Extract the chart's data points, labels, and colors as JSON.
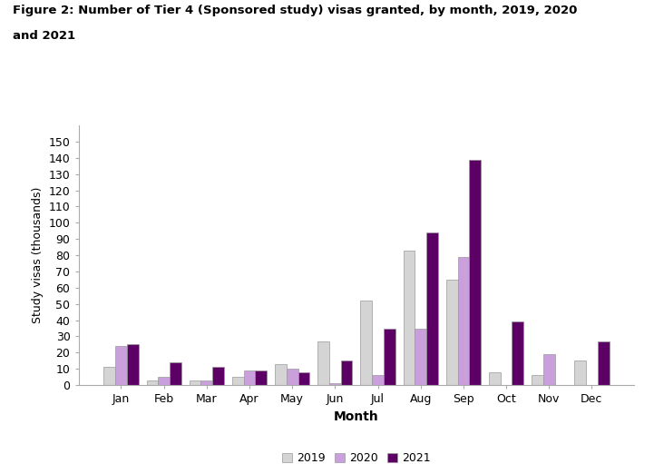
{
  "title_line1": "Figure 2: Number of Tier 4 (Sponsored study) visas granted, by month, 2019, 2020",
  "title_line2": "and 2021",
  "months": [
    "Jan",
    "Feb",
    "Mar",
    "Apr",
    "May",
    "Jun",
    "Jul",
    "Aug",
    "Sep",
    "Oct",
    "Nov",
    "Dec"
  ],
  "data_2019": [
    11,
    3,
    3,
    5,
    13,
    27,
    52,
    83,
    65,
    8,
    6,
    15
  ],
  "data_2020": [
    24,
    5,
    3,
    9,
    10,
    1,
    6,
    35,
    79,
    0,
    19,
    0
  ],
  "data_2021": [
    25,
    14,
    11,
    9,
    8,
    15,
    35,
    94,
    139,
    39,
    0,
    27
  ],
  "color_2019": "#d4d4d4",
  "color_2020": "#c9a0dc",
  "color_2021": "#5c0066",
  "xlabel": "Month",
  "ylabel": "Study visas (thousands)",
  "ylim": [
    0,
    160
  ],
  "yticks": [
    0,
    10,
    20,
    30,
    40,
    50,
    60,
    70,
    80,
    90,
    100,
    110,
    120,
    130,
    140,
    150
  ],
  "legend_labels": [
    "2019",
    "2020",
    "2021"
  ],
  "background_color": "#ffffff"
}
